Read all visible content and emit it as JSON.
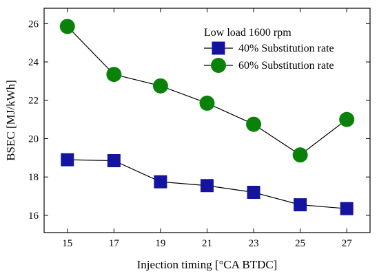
{
  "chart_data": {
    "type": "line",
    "xlabel": "Injection timing [°CA BTDC]",
    "ylabel": "BSEC [MJ/kWh]",
    "x": [
      15,
      17,
      19,
      21,
      23,
      25,
      27
    ],
    "xlim": [
      14,
      28
    ],
    "ylim": [
      15.1,
      26.8
    ],
    "xticks": [
      15,
      17,
      19,
      21,
      23,
      25,
      27
    ],
    "yticks": [
      16,
      18,
      20,
      22,
      24,
      26
    ],
    "legend_title": "Low load 1600 rpm",
    "legend_position": "top-right",
    "grid": false,
    "series": [
      {
        "name": "40% Substitution rate",
        "marker": "square",
        "color": "#1414a0",
        "values": [
          18.9,
          18.85,
          17.75,
          17.55,
          17.2,
          16.55,
          16.35
        ]
      },
      {
        "name": "60% Substitution rate",
        "marker": "circle",
        "color": "#0a820a",
        "values": [
          25.85,
          23.35,
          22.75,
          21.85,
          20.75,
          19.15,
          21.0
        ]
      }
    ]
  }
}
